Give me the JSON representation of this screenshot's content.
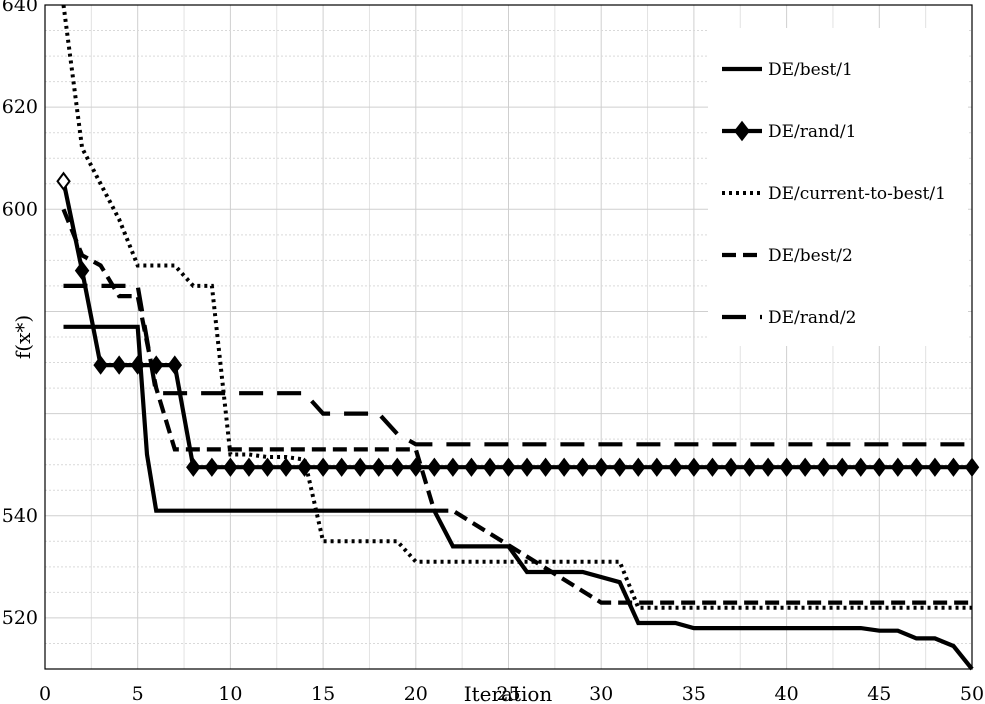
{
  "chart_data": {
    "type": "line",
    "xlabel": "Iteration",
    "ylabel": "f(x*)",
    "xlim": [
      0,
      50
    ],
    "ylim": [
      510,
      640
    ],
    "xticks": [
      0,
      5,
      10,
      15,
      20,
      25,
      30,
      35,
      40,
      45,
      50
    ],
    "yticks": [
      520,
      540,
      600,
      620,
      640
    ],
    "grid": true,
    "legend_position": "top-right",
    "series": [
      {
        "name": "DE/best/1",
        "style": "solid",
        "x": [
          1,
          5,
          5.5,
          6,
          21,
          22,
          25,
          26,
          29,
          31,
          32,
          34,
          35,
          44,
          45,
          46,
          47,
          48,
          49,
          50
        ],
        "y": [
          577,
          577,
          552,
          541,
          541,
          534,
          534,
          529,
          529,
          527,
          519,
          519,
          518,
          518,
          517.5,
          517.5,
          516,
          516,
          514.5,
          510
        ]
      },
      {
        "name": "DE/rand/1",
        "style": "solid-diamond",
        "x": [
          1,
          2,
          3,
          4,
          5,
          6,
          7,
          8,
          9,
          10,
          11,
          12,
          13,
          14,
          15,
          16,
          17,
          18,
          19,
          20,
          21,
          22,
          23,
          24,
          25,
          26,
          27,
          28,
          29,
          30,
          31,
          32,
          33,
          34,
          35,
          36,
          37,
          38,
          39,
          40,
          41,
          42,
          43,
          44,
          45,
          46,
          47,
          48,
          49,
          50
        ],
        "y": [
          605.5,
          588,
          569.5,
          569.5,
          569.5,
          569.5,
          569.5,
          549.5,
          549.5,
          549.5,
          549.5,
          549.5,
          549.5,
          549.5,
          549.5,
          549.5,
          549.5,
          549.5,
          549.5,
          549.5,
          549.5,
          549.5,
          549.5,
          549.5,
          549.5,
          549.5,
          549.5,
          549.5,
          549.5,
          549.5,
          549.5,
          549.5,
          549.5,
          549.5,
          549.5,
          549.5,
          549.5,
          549.5,
          549.5,
          549.5,
          549.5,
          549.5,
          549.5,
          549.5,
          549.5,
          549.5,
          549.5,
          549.5,
          549.5,
          549.5
        ]
      },
      {
        "name": "DE/current-to-best/1",
        "style": "dotted",
        "x": [
          1,
          2,
          3,
          4,
          5,
          7,
          8,
          9,
          10,
          11,
          12,
          13,
          14,
          15,
          16,
          19,
          20,
          31,
          32,
          50
        ],
        "y": [
          640,
          612,
          605,
          598,
          589,
          589,
          585,
          585,
          552,
          552,
          551.5,
          551.5,
          551,
          535,
          535,
          535,
          531,
          531,
          522,
          522
        ]
      },
      {
        "name": "DE/best/2",
        "style": "dash",
        "x": [
          1,
          2,
          3,
          4,
          5,
          6,
          7,
          20,
          21,
          22,
          30,
          31,
          50
        ],
        "y": [
          600,
          591,
          589,
          583,
          583,
          565,
          553,
          553,
          541,
          541,
          523,
          523,
          523
        ]
      },
      {
        "name": "DE/rand/2",
        "style": "long-dash",
        "x": [
          1,
          3,
          4,
          5,
          6,
          14,
          15,
          18,
          19,
          20,
          21,
          50
        ],
        "y": [
          585,
          585,
          585,
          585,
          564,
          564,
          560,
          560,
          556,
          554,
          554,
          554
        ]
      }
    ]
  }
}
